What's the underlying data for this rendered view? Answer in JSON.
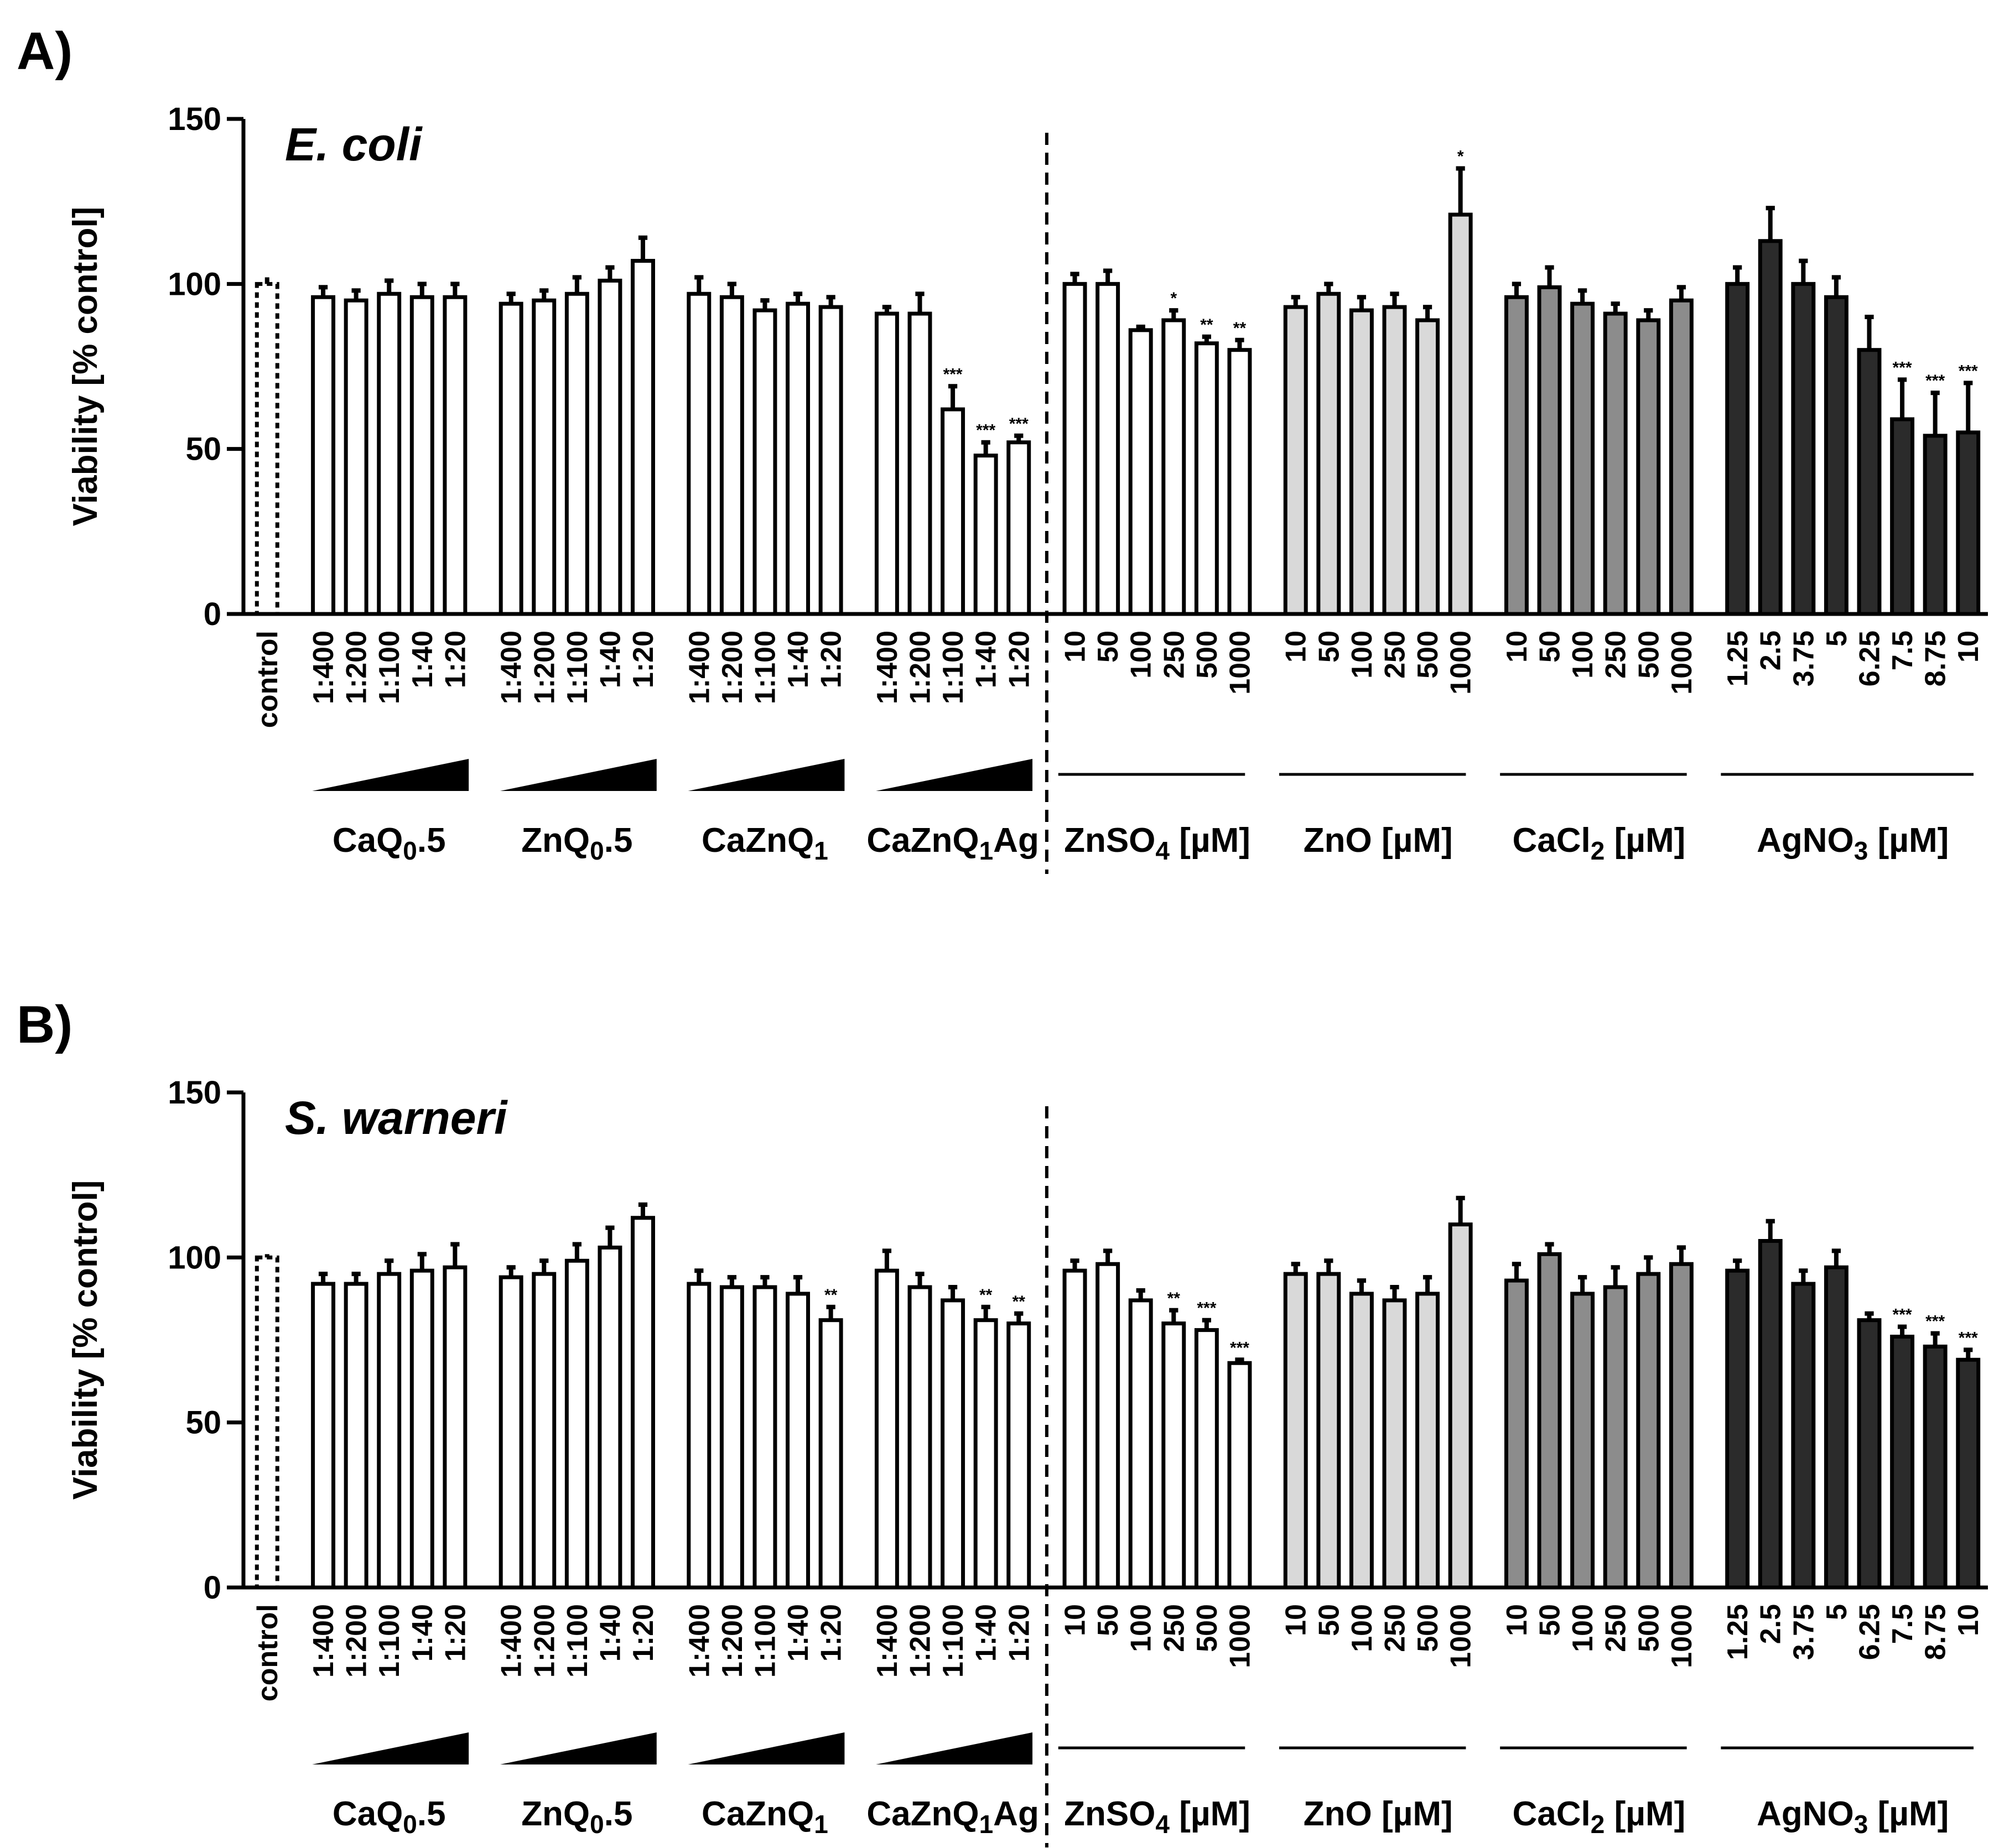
{
  "colors": {
    "zn": "#ffffff",
    "zno": "#d9d9d9",
    "cacl2": "#8c8c8c",
    "agno3": "#2b2b2b"
  },
  "chart_data": [
    {
      "panel_label": "A)",
      "type": "bar",
      "title": "E. coli",
      "ylabel": "Viability [% control]",
      "ylim": [
        0,
        150
      ],
      "yticks": [
        "0",
        "50",
        "100",
        "150"
      ],
      "control": {
        "label": "control",
        "value": 100,
        "err": 2
      },
      "groups": [
        {
          "label": "CaQ0.5",
          "color_key": "zn",
          "categories": [
            "1:400",
            "1:200",
            "1:100",
            "1:40",
            "1:20"
          ],
          "values": [
            96,
            95,
            97,
            96,
            96
          ],
          "errors": [
            3,
            3,
            4,
            4,
            4
          ],
          "sig": [
            "",
            "",
            "",
            "",
            ""
          ]
        },
        {
          "label": "ZnQ0.5",
          "color_key": "zn",
          "categories": [
            "1:400",
            "1:200",
            "1:100",
            "1:40",
            "1:20"
          ],
          "values": [
            94,
            95,
            97,
            101,
            107
          ],
          "errors": [
            3,
            3,
            5,
            4,
            7
          ],
          "sig": [
            "",
            "",
            "",
            "",
            ""
          ]
        },
        {
          "label": "CaZnQ1",
          "color_key": "zn",
          "categories": [
            "1:400",
            "1:200",
            "1:100",
            "1:40",
            "1:20"
          ],
          "values": [
            97,
            96,
            92,
            94,
            93
          ],
          "errors": [
            5,
            4,
            3,
            3,
            3
          ],
          "sig": [
            "",
            "",
            "",
            "",
            ""
          ]
        },
        {
          "label": "CaZnQ1Ag",
          "color_key": "zn",
          "categories": [
            "1:400",
            "1:200",
            "1:100",
            "1:40",
            "1:20"
          ],
          "values": [
            91,
            91,
            62,
            48,
            52
          ],
          "errors": [
            2,
            6,
            7,
            4,
            2
          ],
          "sig": [
            "",
            "",
            "***",
            "***",
            "***"
          ]
        },
        {
          "label": "ZnSO4 [µM]",
          "color_key": "zn",
          "categories": [
            "10",
            "50",
            "100",
            "250",
            "500",
            "1000"
          ],
          "values": [
            100,
            100,
            86,
            89,
            82,
            80
          ],
          "errors": [
            3,
            4,
            1,
            3,
            2,
            3
          ],
          "sig": [
            "",
            "",
            "",
            "*",
            "**",
            "**"
          ]
        },
        {
          "label": "ZnO [µM]",
          "color_key": "zno",
          "categories": [
            "10",
            "50",
            "100",
            "250",
            "500",
            "1000"
          ],
          "values": [
            93,
            97,
            92,
            93,
            89,
            121
          ],
          "errors": [
            3,
            3,
            4,
            4,
            4,
            14
          ],
          "sig": [
            "",
            "",
            "",
            "",
            "",
            "*"
          ]
        },
        {
          "label": "CaCl2 [µM]",
          "color_key": "cacl2",
          "categories": [
            "10",
            "50",
            "100",
            "250",
            "500",
            "1000"
          ],
          "values": [
            96,
            99,
            94,
            91,
            89,
            95
          ],
          "errors": [
            4,
            6,
            4,
            3,
            3,
            4
          ],
          "sig": [
            "",
            "",
            "",
            "",
            "",
            ""
          ]
        },
        {
          "label": "AgNO3 [µM]",
          "color_key": "agno3",
          "categories": [
            "1.25",
            "2.5",
            "3.75",
            "5",
            "6.25",
            "7.5",
            "8.75",
            "10"
          ],
          "values": [
            100,
            113,
            100,
            96,
            80,
            59,
            54,
            55
          ],
          "errors": [
            5,
            10,
            7,
            6,
            10,
            12,
            13,
            15
          ],
          "sig": [
            "",
            "",
            "",
            "",
            "",
            "***",
            "***",
            "***"
          ]
        }
      ]
    },
    {
      "panel_label": "B)",
      "type": "bar",
      "title": "S. warneri",
      "ylabel": "Viability [% control]",
      "ylim": [
        0,
        150
      ],
      "yticks": [
        "0",
        "50",
        "100",
        "150"
      ],
      "control": {
        "label": "control",
        "value": 100,
        "err": 1
      },
      "groups": [
        {
          "label": "CaQ0.5",
          "color_key": "zn",
          "categories": [
            "1:400",
            "1:200",
            "1:100",
            "1:40",
            "1:20"
          ],
          "values": [
            92,
            92,
            95,
            96,
            97
          ],
          "errors": [
            3,
            3,
            4,
            5,
            7
          ],
          "sig": [
            "",
            "",
            "",
            "",
            ""
          ]
        },
        {
          "label": "ZnQ0.5",
          "color_key": "zn",
          "categories": [
            "1:400",
            "1:200",
            "1:100",
            "1:40",
            "1:20"
          ],
          "values": [
            94,
            95,
            99,
            103,
            112
          ],
          "errors": [
            3,
            4,
            5,
            6,
            4
          ],
          "sig": [
            "",
            "",
            "",
            "",
            ""
          ]
        },
        {
          "label": "CaZnQ1",
          "color_key": "zn",
          "categories": [
            "1:400",
            "1:200",
            "1:100",
            "1:40",
            "1:20"
          ],
          "values": [
            92,
            91,
            91,
            89,
            81
          ],
          "errors": [
            4,
            3,
            3,
            5,
            4
          ],
          "sig": [
            "",
            "",
            "",
            "",
            "**"
          ]
        },
        {
          "label": "CaZnQ1Ag",
          "color_key": "zn",
          "categories": [
            "1:400",
            "1:200",
            "1:100",
            "1:40",
            "1:20"
          ],
          "values": [
            96,
            91,
            87,
            81,
            80
          ],
          "errors": [
            6,
            4,
            4,
            4,
            3
          ],
          "sig": [
            "",
            "",
            "",
            "**",
            "**"
          ]
        },
        {
          "label": "ZnSO4 [µM]",
          "color_key": "zn",
          "categories": [
            "10",
            "50",
            "100",
            "250",
            "500",
            "1000"
          ],
          "values": [
            96,
            98,
            87,
            80,
            78,
            68
          ],
          "errors": [
            3,
            4,
            3,
            4,
            3,
            1
          ],
          "sig": [
            "",
            "",
            "",
            "**",
            "***",
            "***"
          ]
        },
        {
          "label": "ZnO [µM]",
          "color_key": "zno",
          "categories": [
            "10",
            "50",
            "100",
            "250",
            "500",
            "1000"
          ],
          "values": [
            95,
            95,
            89,
            87,
            89,
            110
          ],
          "errors": [
            3,
            4,
            4,
            4,
            5,
            8
          ],
          "sig": [
            "",
            "",
            "",
            "",
            "",
            ""
          ]
        },
        {
          "label": "CaCl2 [µM]",
          "color_key": "cacl2",
          "categories": [
            "10",
            "50",
            "100",
            "250",
            "500",
            "1000"
          ],
          "values": [
            93,
            101,
            89,
            91,
            95,
            98
          ],
          "errors": [
            5,
            3,
            5,
            6,
            5,
            5
          ],
          "sig": [
            "",
            "",
            "",
            "",
            "",
            ""
          ]
        },
        {
          "label": "AgNO3 [µM]",
          "color_key": "agno3",
          "categories": [
            "1.25",
            "2.5",
            "3.75",
            "5",
            "6.25",
            "7.5",
            "8.75",
            "10"
          ],
          "values": [
            96,
            105,
            92,
            97,
            81,
            76,
            73,
            69
          ],
          "errors": [
            3,
            6,
            4,
            5,
            2,
            3,
            4,
            3
          ],
          "sig": [
            "",
            "",
            "",
            "",
            "",
            "***",
            "***",
            "***"
          ]
        }
      ]
    }
  ]
}
